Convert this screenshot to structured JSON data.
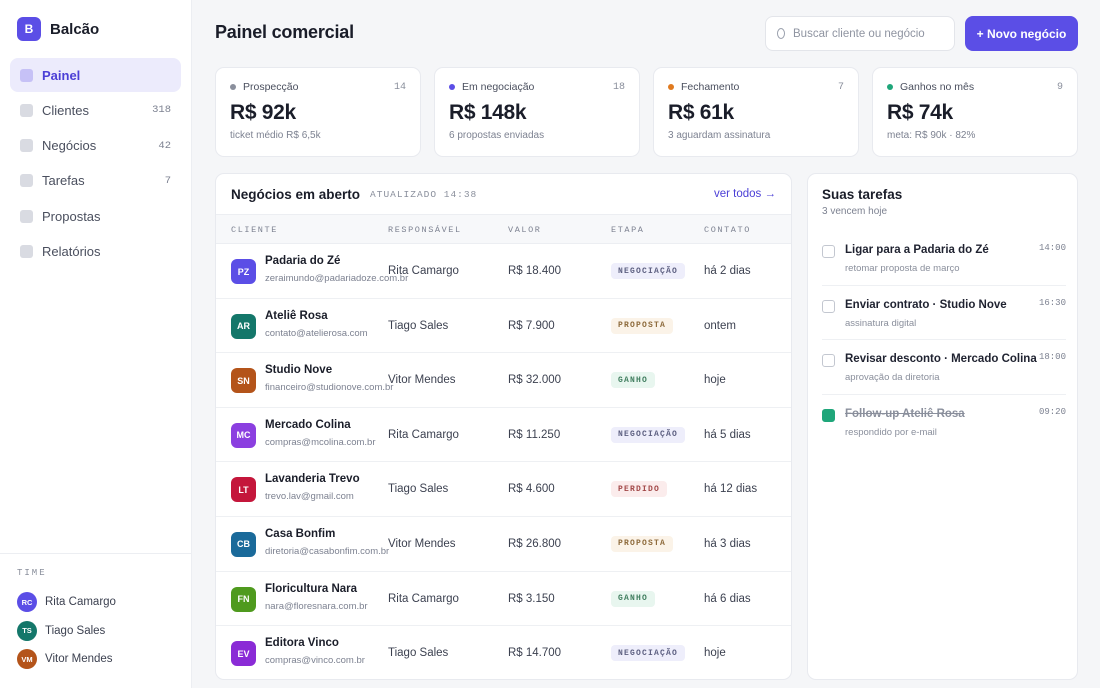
{
  "app": {
    "logo_letter": "B",
    "name": "Balcão"
  },
  "sidebar": {
    "items": [
      {
        "label": "Painel",
        "count": "",
        "active": true
      },
      {
        "label": "Clientes",
        "count": "318",
        "active": false
      },
      {
        "label": "Negócios",
        "count": "42",
        "active": false
      },
      {
        "label": "Tarefas",
        "count": "7",
        "active": false
      },
      {
        "label": "Propostas",
        "count": "",
        "active": false
      },
      {
        "label": "Relatórios",
        "count": "",
        "active": false
      }
    ],
    "team_title": "TIME",
    "team": [
      {
        "initials": "RC",
        "name": "Rita Camargo",
        "color": "#5b4ee6"
      },
      {
        "initials": "TS",
        "name": "Tiago Sales",
        "color": "#14776a"
      },
      {
        "initials": "VM",
        "name": "Vitor Mendes",
        "color": "#b4541a"
      }
    ]
  },
  "header": {
    "title": "Painel comercial",
    "search_placeholder": "Buscar cliente ou negócio",
    "new_button": "+ Novo negócio"
  },
  "stats": [
    {
      "label": "Prospecção",
      "count": "14",
      "value": "R$ 92k",
      "sub": "ticket médio R$ 6,5k",
      "color": "#8a8f9c"
    },
    {
      "label": "Em negociação",
      "count": "18",
      "value": "R$ 148k",
      "sub": "6 propostas enviadas",
      "color": "#5b4ee6"
    },
    {
      "label": "Fechamento",
      "count": "7",
      "value": "R$ 61k",
      "sub": "3 aguardam assinatura",
      "color": "#e07a1f"
    },
    {
      "label": "Ganhos no mês",
      "count": "9",
      "value": "R$ 74k",
      "sub": "meta: R$ 90k · 82%",
      "color": "#1fa67a"
    }
  ],
  "deals": {
    "title": "Negócios em aberto",
    "updated": "ATUALIZADO 14:38",
    "see_all": "ver todos →",
    "columns": [
      "CLIENTE",
      "RESPONSÁVEL",
      "VALOR",
      "ETAPA",
      "CONTATO"
    ],
    "rows": [
      {
        "initials": "PZ",
        "color": "#5b4ee6",
        "name": "Padaria do Zé",
        "email": "zeraimundo@padariadoze.com.br",
        "owner": "Rita Camargo",
        "value": "R$ 18.400",
        "stage": "NEGOCIAÇÃO",
        "stage_class": "st-neg",
        "contact": "há 2 dias"
      },
      {
        "initials": "AR",
        "color": "#14776a",
        "name": "Ateliê Rosa",
        "email": "contato@atelierosa.com",
        "owner": "Tiago Sales",
        "value": "R$ 7.900",
        "stage": "PROPOSTA",
        "stage_class": "st-prop",
        "contact": "ontem"
      },
      {
        "initials": "SN",
        "color": "#b4541a",
        "name": "Studio Nove",
        "email": "financeiro@studionove.com.br",
        "owner": "Vitor Mendes",
        "value": "R$ 32.000",
        "stage": "GANHO",
        "stage_class": "st-won",
        "contact": "hoje"
      },
      {
        "initials": "MC",
        "color": "#8b3fe0",
        "name": "Mercado Colina",
        "email": "compras@mcolina.com.br",
        "owner": "Rita Camargo",
        "value": "R$ 11.250",
        "stage": "NEGOCIAÇÃO",
        "stage_class": "st-neg",
        "contact": "há 5 dias"
      },
      {
        "initials": "LT",
        "color": "#c4163b",
        "name": "Lavanderia Trevo",
        "email": "trevo.lav@gmail.com",
        "owner": "Tiago Sales",
        "value": "R$ 4.600",
        "stage": "PERDIDO",
        "stage_class": "st-lost",
        "contact": "há 12 dias"
      },
      {
        "initials": "CB",
        "color": "#1a6a9a",
        "name": "Casa Bonfim",
        "email": "diretoria@casabonfim.com.br",
        "owner": "Vitor Mendes",
        "value": "R$ 26.800",
        "stage": "PROPOSTA",
        "stage_class": "st-prop",
        "contact": "há 3 dias"
      },
      {
        "initials": "FN",
        "color": "#4f9a1e",
        "name": "Floricultura Nara",
        "email": "nara@floresnara.com.br",
        "owner": "Rita Camargo",
        "value": "R$ 3.150",
        "stage": "GANHO",
        "stage_class": "st-won",
        "contact": "há 6 dias"
      },
      {
        "initials": "EV",
        "color": "#8a2bd6",
        "name": "Editora Vinco",
        "email": "compras@vinco.com.br",
        "owner": "Tiago Sales",
        "value": "R$ 14.700",
        "stage": "NEGOCIAÇÃO",
        "stage_class": "st-neg",
        "contact": "hoje"
      }
    ]
  },
  "tasks": {
    "title": "Suas tarefas",
    "subtitle": "3 vencem hoje",
    "items": [
      {
        "title": "Ligar para a Padaria do Zé",
        "sub": "retomar proposta de março",
        "time": "14:00",
        "done": false
      },
      {
        "title": "Enviar contrato · Studio Nove",
        "sub": "assinatura digital",
        "time": "16:30",
        "done": false
      },
      {
        "title": "Revisar desconto · Mercado Colina",
        "sub": "aprovação da diretoria",
        "time": "18:00",
        "done": false
      },
      {
        "title": "Follow-up Ateliê Rosa",
        "sub": "respondido por e-mail",
        "time": "09:20",
        "done": true
      }
    ]
  }
}
